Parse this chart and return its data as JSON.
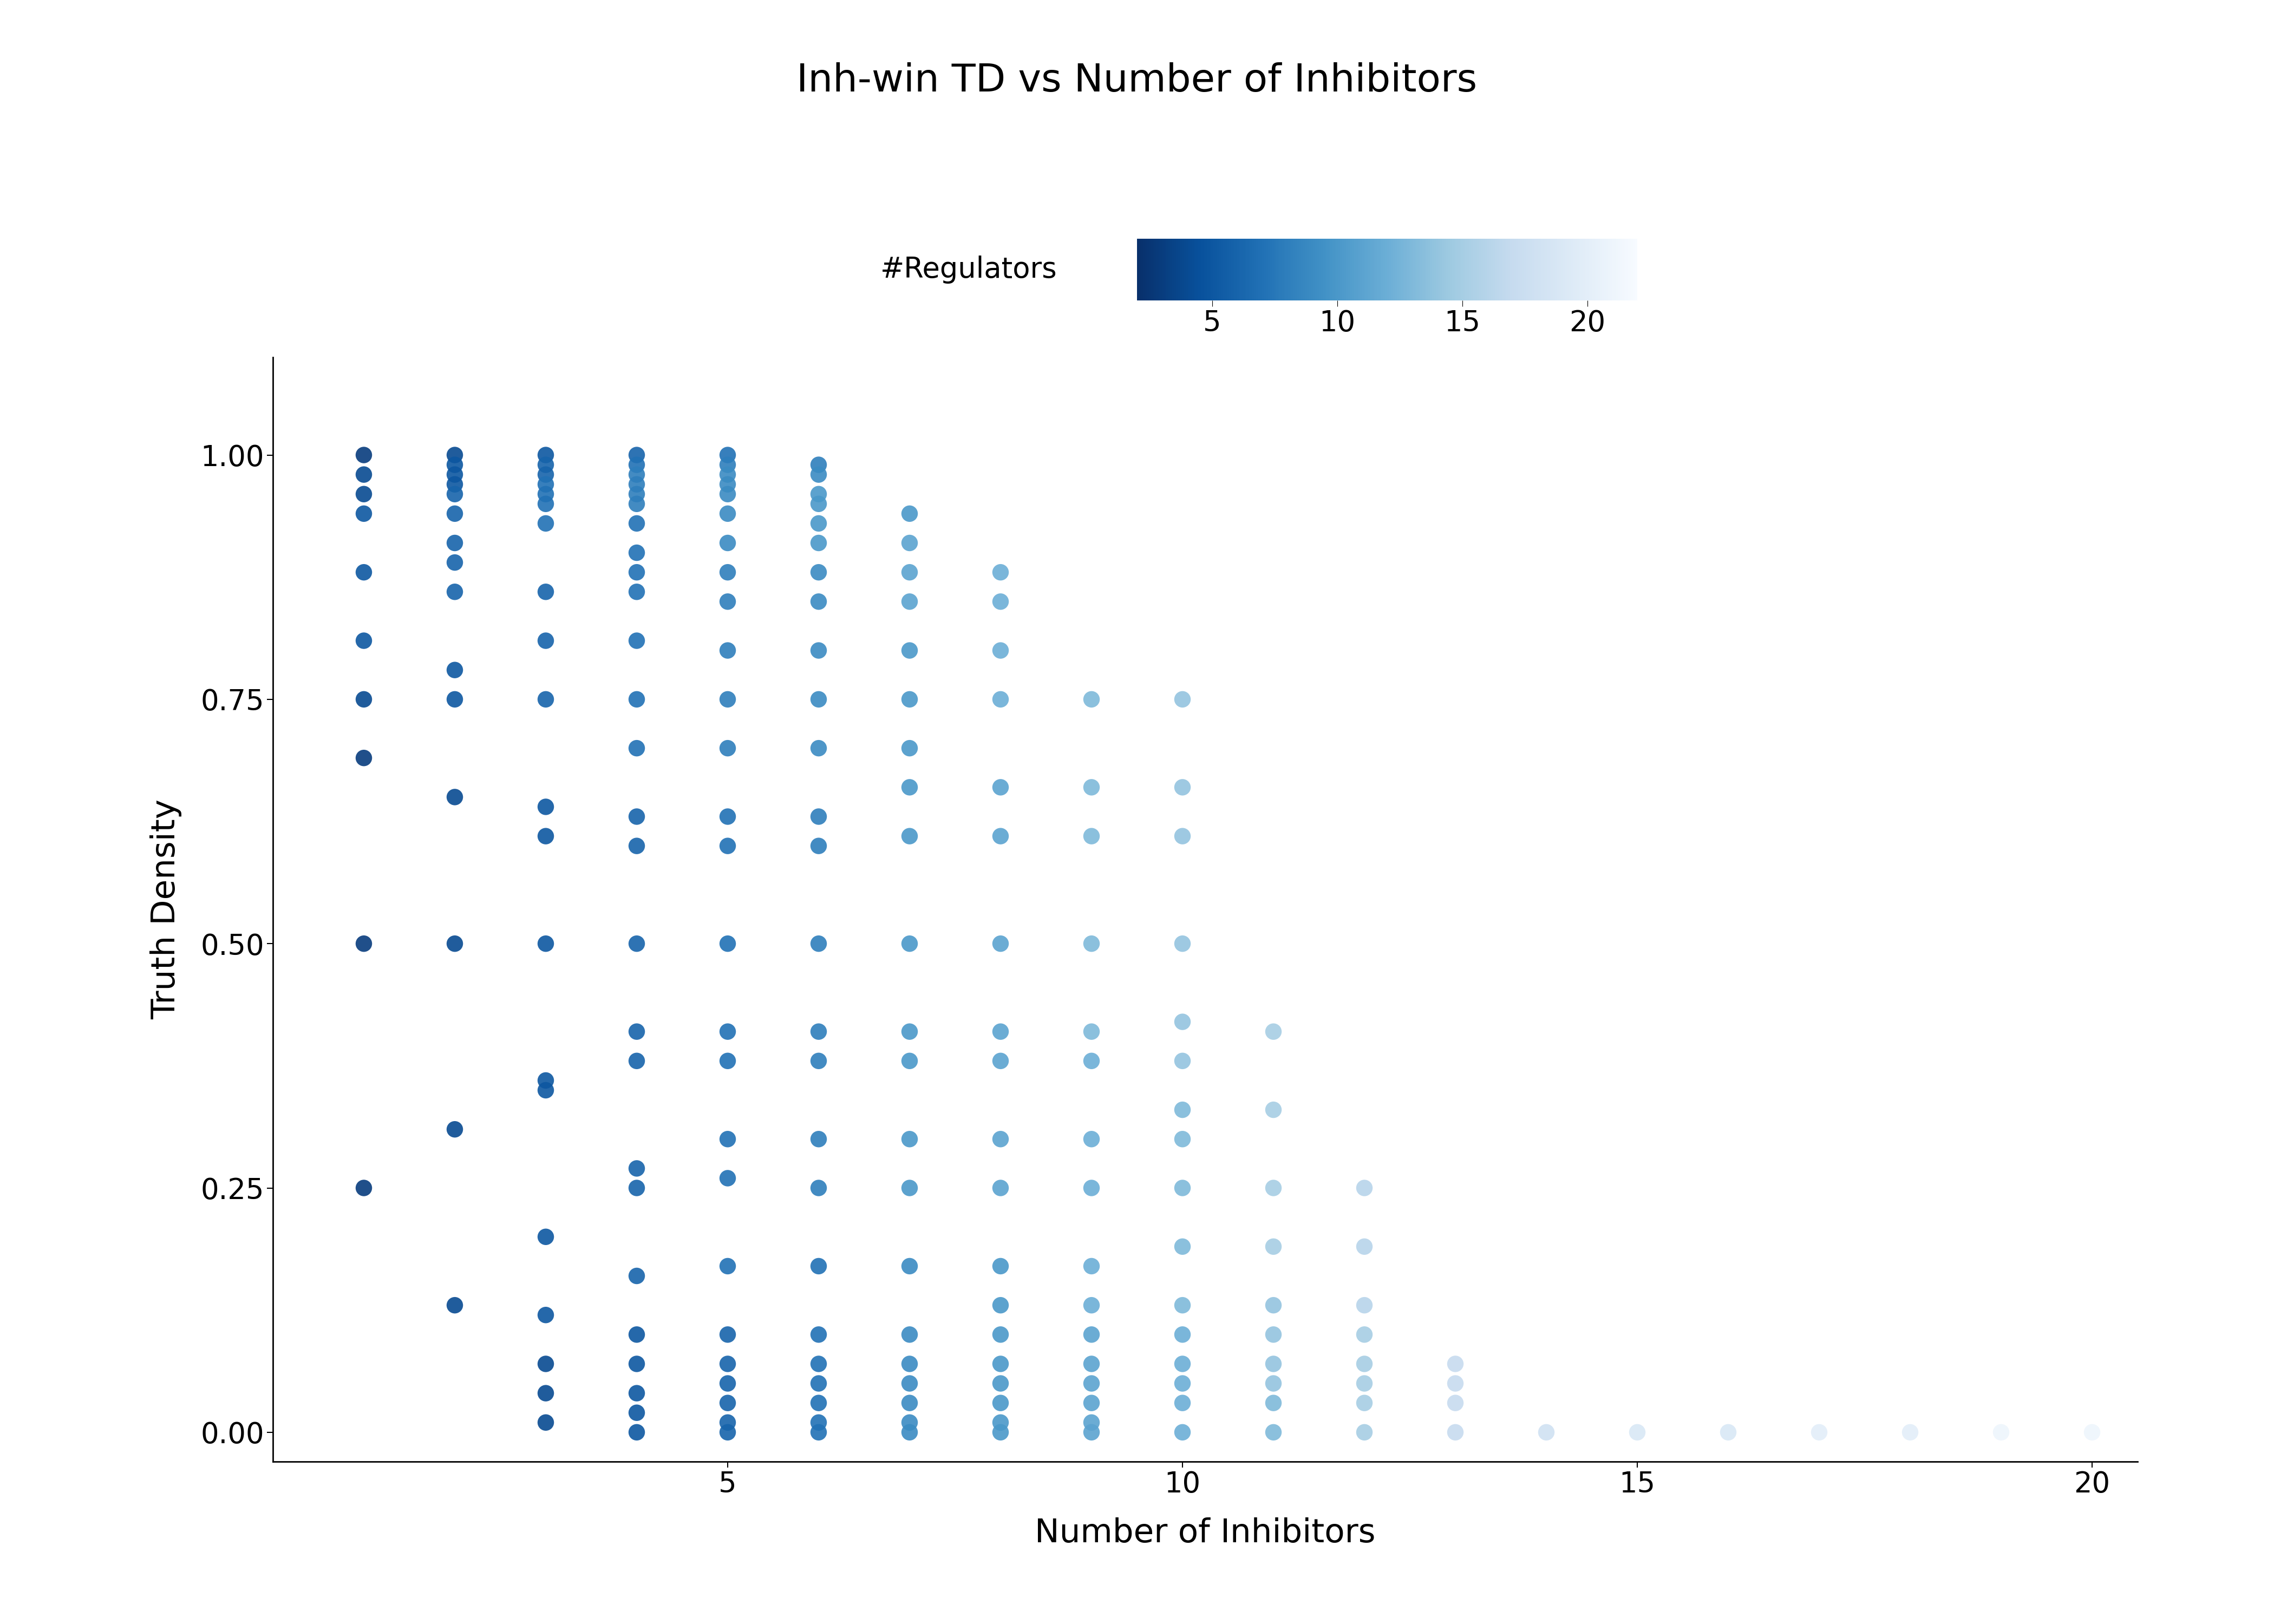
{
  "title": "Inh-win TD vs Number of Inhibitors",
  "xlabel": "Number of Inhibitors",
  "ylabel": "Truth Density",
  "colorbar_label": "#Regulators",
  "colorbar_ticks": [
    5,
    10,
    15,
    20
  ],
  "cmap": "Blues_r",
  "color_vmin": 2,
  "color_vmax": 22,
  "dot_size": 480,
  "alpha": 0.9,
  "title_fontsize": 52,
  "label_fontsize": 44,
  "tick_fontsize": 38,
  "colorbar_fontsize": 38,
  "background_color": "#ffffff",
  "points": [
    [
      1,
      1.0,
      3
    ],
    [
      1,
      0.98,
      4
    ],
    [
      1,
      0.96,
      4
    ],
    [
      1,
      0.94,
      5
    ],
    [
      1,
      0.88,
      5
    ],
    [
      1,
      0.81,
      5
    ],
    [
      1,
      0.75,
      4
    ],
    [
      1,
      0.69,
      3
    ],
    [
      1,
      0.5,
      3
    ],
    [
      1,
      0.25,
      3
    ],
    [
      2,
      1.0,
      4
    ],
    [
      2,
      0.99,
      5
    ],
    [
      2,
      0.98,
      5
    ],
    [
      2,
      0.97,
      5
    ],
    [
      2,
      0.96,
      6
    ],
    [
      2,
      0.94,
      6
    ],
    [
      2,
      0.91,
      6
    ],
    [
      2,
      0.89,
      6
    ],
    [
      2,
      0.86,
      6
    ],
    [
      2,
      0.78,
      5
    ],
    [
      2,
      0.75,
      5
    ],
    [
      2,
      0.65,
      4
    ],
    [
      2,
      0.5,
      4
    ],
    [
      2,
      0.31,
      4
    ],
    [
      2,
      0.13,
      4
    ],
    [
      3,
      1.0,
      5
    ],
    [
      3,
      0.99,
      6
    ],
    [
      3,
      0.98,
      6
    ],
    [
      3,
      0.97,
      7
    ],
    [
      3,
      0.96,
      7
    ],
    [
      3,
      0.95,
      7
    ],
    [
      3,
      0.93,
      7
    ],
    [
      3,
      0.86,
      6
    ],
    [
      3,
      0.81,
      6
    ],
    [
      3,
      0.75,
      6
    ],
    [
      3,
      0.64,
      5
    ],
    [
      3,
      0.61,
      5
    ],
    [
      3,
      0.5,
      5
    ],
    [
      3,
      0.36,
      5
    ],
    [
      3,
      0.35,
      5
    ],
    [
      3,
      0.2,
      5
    ],
    [
      3,
      0.12,
      5
    ],
    [
      3,
      0.07,
      4
    ],
    [
      3,
      0.04,
      4
    ],
    [
      3,
      0.01,
      4
    ],
    [
      4,
      1.0,
      6
    ],
    [
      4,
      0.99,
      7
    ],
    [
      4,
      0.98,
      8
    ],
    [
      4,
      0.97,
      8
    ],
    [
      4,
      0.96,
      8
    ],
    [
      4,
      0.95,
      8
    ],
    [
      4,
      0.93,
      7
    ],
    [
      4,
      0.9,
      7
    ],
    [
      4,
      0.88,
      7
    ],
    [
      4,
      0.86,
      7
    ],
    [
      4,
      0.81,
      7
    ],
    [
      4,
      0.75,
      7
    ],
    [
      4,
      0.7,
      7
    ],
    [
      4,
      0.63,
      6
    ],
    [
      4,
      0.6,
      6
    ],
    [
      4,
      0.5,
      6
    ],
    [
      4,
      0.41,
      6
    ],
    [
      4,
      0.38,
      6
    ],
    [
      4,
      0.27,
      6
    ],
    [
      4,
      0.25,
      6
    ],
    [
      4,
      0.16,
      6
    ],
    [
      4,
      0.1,
      5
    ],
    [
      4,
      0.07,
      5
    ],
    [
      4,
      0.04,
      5
    ],
    [
      4,
      0.02,
      5
    ],
    [
      4,
      0.0,
      5
    ],
    [
      5,
      1.0,
      7
    ],
    [
      5,
      0.99,
      8
    ],
    [
      5,
      0.98,
      9
    ],
    [
      5,
      0.97,
      9
    ],
    [
      5,
      0.96,
      9
    ],
    [
      5,
      0.94,
      9
    ],
    [
      5,
      0.91,
      9
    ],
    [
      5,
      0.88,
      8
    ],
    [
      5,
      0.85,
      8
    ],
    [
      5,
      0.8,
      8
    ],
    [
      5,
      0.75,
      8
    ],
    [
      5,
      0.7,
      8
    ],
    [
      5,
      0.63,
      7
    ],
    [
      5,
      0.6,
      7
    ],
    [
      5,
      0.5,
      7
    ],
    [
      5,
      0.41,
      7
    ],
    [
      5,
      0.38,
      7
    ],
    [
      5,
      0.3,
      7
    ],
    [
      5,
      0.26,
      7
    ],
    [
      5,
      0.17,
      7
    ],
    [
      5,
      0.1,
      6
    ],
    [
      5,
      0.07,
      6
    ],
    [
      5,
      0.05,
      6
    ],
    [
      5,
      0.03,
      6
    ],
    [
      5,
      0.01,
      6
    ],
    [
      5,
      0.0,
      6
    ],
    [
      6,
      0.99,
      8
    ],
    [
      6,
      0.98,
      9
    ],
    [
      6,
      0.96,
      10
    ],
    [
      6,
      0.95,
      10
    ],
    [
      6,
      0.93,
      10
    ],
    [
      6,
      0.91,
      10
    ],
    [
      6,
      0.88,
      9
    ],
    [
      6,
      0.85,
      9
    ],
    [
      6,
      0.8,
      9
    ],
    [
      6,
      0.75,
      9
    ],
    [
      6,
      0.7,
      9
    ],
    [
      6,
      0.63,
      8
    ],
    [
      6,
      0.6,
      8
    ],
    [
      6,
      0.5,
      8
    ],
    [
      6,
      0.41,
      8
    ],
    [
      6,
      0.38,
      8
    ],
    [
      6,
      0.3,
      8
    ],
    [
      6,
      0.25,
      8
    ],
    [
      6,
      0.17,
      7
    ],
    [
      6,
      0.1,
      7
    ],
    [
      6,
      0.07,
      7
    ],
    [
      6,
      0.05,
      7
    ],
    [
      6,
      0.03,
      7
    ],
    [
      6,
      0.01,
      7
    ],
    [
      6,
      0.0,
      7
    ],
    [
      7,
      0.94,
      10
    ],
    [
      7,
      0.91,
      11
    ],
    [
      7,
      0.88,
      11
    ],
    [
      7,
      0.85,
      11
    ],
    [
      7,
      0.8,
      10
    ],
    [
      7,
      0.75,
      10
    ],
    [
      7,
      0.7,
      10
    ],
    [
      7,
      0.66,
      10
    ],
    [
      7,
      0.61,
      10
    ],
    [
      7,
      0.5,
      10
    ],
    [
      7,
      0.41,
      10
    ],
    [
      7,
      0.38,
      10
    ],
    [
      7,
      0.3,
      10
    ],
    [
      7,
      0.25,
      10
    ],
    [
      7,
      0.17,
      9
    ],
    [
      7,
      0.1,
      9
    ],
    [
      7,
      0.07,
      9
    ],
    [
      7,
      0.05,
      9
    ],
    [
      7,
      0.03,
      9
    ],
    [
      7,
      0.01,
      9
    ],
    [
      7,
      0.0,
      9
    ],
    [
      8,
      0.88,
      12
    ],
    [
      8,
      0.85,
      12
    ],
    [
      8,
      0.8,
      12
    ],
    [
      8,
      0.75,
      12
    ],
    [
      8,
      0.66,
      11
    ],
    [
      8,
      0.61,
      11
    ],
    [
      8,
      0.5,
      11
    ],
    [
      8,
      0.41,
      11
    ],
    [
      8,
      0.38,
      11
    ],
    [
      8,
      0.3,
      11
    ],
    [
      8,
      0.25,
      11
    ],
    [
      8,
      0.17,
      10
    ],
    [
      8,
      0.13,
      10
    ],
    [
      8,
      0.1,
      10
    ],
    [
      8,
      0.07,
      10
    ],
    [
      8,
      0.05,
      10
    ],
    [
      8,
      0.03,
      10
    ],
    [
      8,
      0.01,
      10
    ],
    [
      8,
      0.0,
      10
    ],
    [
      9,
      0.75,
      13
    ],
    [
      9,
      0.66,
      13
    ],
    [
      9,
      0.61,
      13
    ],
    [
      9,
      0.5,
      13
    ],
    [
      9,
      0.41,
      13
    ],
    [
      9,
      0.38,
      12
    ],
    [
      9,
      0.3,
      12
    ],
    [
      9,
      0.25,
      12
    ],
    [
      9,
      0.17,
      12
    ],
    [
      9,
      0.13,
      12
    ],
    [
      9,
      0.1,
      11
    ],
    [
      9,
      0.07,
      11
    ],
    [
      9,
      0.05,
      11
    ],
    [
      9,
      0.03,
      11
    ],
    [
      9,
      0.01,
      11
    ],
    [
      9,
      0.0,
      11
    ],
    [
      10,
      0.75,
      14
    ],
    [
      10,
      0.66,
      14
    ],
    [
      10,
      0.61,
      14
    ],
    [
      10,
      0.5,
      14
    ],
    [
      10,
      0.42,
      14
    ],
    [
      10,
      0.38,
      14
    ],
    [
      10,
      0.33,
      13
    ],
    [
      10,
      0.3,
      13
    ],
    [
      10,
      0.25,
      13
    ],
    [
      10,
      0.19,
      13
    ],
    [
      10,
      0.13,
      13
    ],
    [
      10,
      0.1,
      12
    ],
    [
      10,
      0.07,
      12
    ],
    [
      10,
      0.05,
      12
    ],
    [
      10,
      0.03,
      12
    ],
    [
      10,
      0.0,
      12
    ],
    [
      11,
      0.41,
      15
    ],
    [
      11,
      0.33,
      15
    ],
    [
      11,
      0.25,
      15
    ],
    [
      11,
      0.19,
      15
    ],
    [
      11,
      0.13,
      14
    ],
    [
      11,
      0.1,
      14
    ],
    [
      11,
      0.07,
      14
    ],
    [
      11,
      0.05,
      14
    ],
    [
      11,
      0.03,
      13
    ],
    [
      11,
      0.0,
      13
    ],
    [
      12,
      0.25,
      16
    ],
    [
      12,
      0.19,
      16
    ],
    [
      12,
      0.13,
      16
    ],
    [
      12,
      0.1,
      15
    ],
    [
      12,
      0.07,
      15
    ],
    [
      12,
      0.05,
      15
    ],
    [
      12,
      0.03,
      15
    ],
    [
      12,
      0.0,
      15
    ],
    [
      13,
      0.07,
      17
    ],
    [
      13,
      0.05,
      17
    ],
    [
      13,
      0.03,
      17
    ],
    [
      13,
      0.0,
      17
    ],
    [
      14,
      0.0,
      18
    ],
    [
      15,
      0.0,
      19
    ],
    [
      16,
      0.0,
      19
    ],
    [
      17,
      0.0,
      20
    ],
    [
      18,
      0.0,
      20
    ],
    [
      19,
      0.0,
      21
    ],
    [
      20,
      0.0,
      21
    ]
  ]
}
